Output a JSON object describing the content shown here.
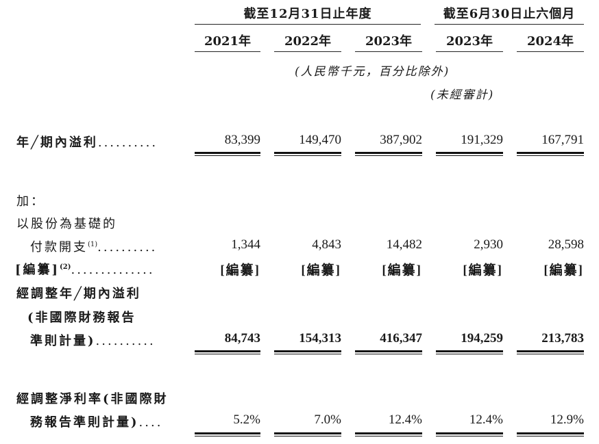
{
  "header": {
    "group_year": "截至12月31日止年度",
    "group_half": "截至6月30日止六個月",
    "years": [
      "2021年",
      "2022年",
      "2023年",
      "2023年",
      "2024年"
    ],
    "unit_note": "(人民幣千元，百分比除外)",
    "unaudited_note": "(未經審計)"
  },
  "rows": {
    "profit": {
      "label": "年╱期內溢利",
      "dots": "..........",
      "values": [
        "83,399",
        "149,470",
        "387,902",
        "191,329",
        "167,791"
      ]
    },
    "add_label": "加：",
    "sbc": {
      "label_line1": "以股份為基礎的",
      "label_line2": "付款開支",
      "sup": "(1)",
      "dots": "..........",
      "values": [
        "1,344",
        "4,843",
        "14,482",
        "2,930",
        "28,598"
      ]
    },
    "redacted": {
      "label": "[編纂]",
      "sup": "(2)",
      "dots": "..............",
      "values": [
        "[編纂]",
        "[編纂]",
        "[編纂]",
        "[編纂]",
        "[編纂]"
      ]
    },
    "adjusted": {
      "label_line1": "經調整年╱期內溢利",
      "label_line2": "(非國際財務報告",
      "label_line3": "準則計量)",
      "dots": "..........",
      "values": [
        "84,743",
        "154,313",
        "416,347",
        "194,259",
        "213,783"
      ]
    },
    "margin": {
      "label_line1": "經調整淨利率(非國際財",
      "label_line2": "務報告準則計量)",
      "dots": "....",
      "values": [
        "5.2%",
        "7.0%",
        "12.4%",
        "12.4%",
        "12.9%"
      ]
    }
  }
}
